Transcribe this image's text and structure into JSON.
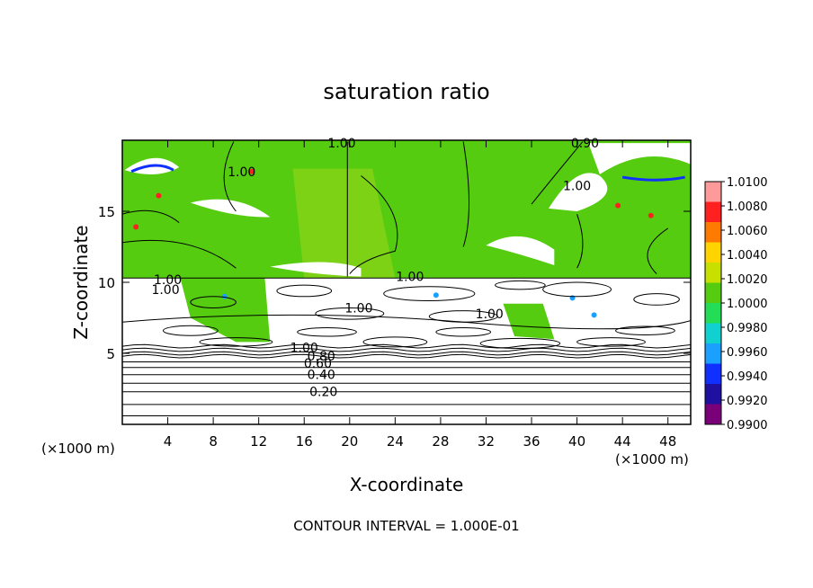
{
  "chart_data": {
    "type": "heatmap",
    "title": "saturation ratio",
    "xlabel": "X-coordinate",
    "ylabel": "Z-coordinate",
    "x_unit_label": "(×1000 m)",
    "z_unit_label": "(×1000 m)",
    "xlim": [
      0,
      50
    ],
    "ylim": [
      0,
      20
    ],
    "x_ticks": [
      4,
      8,
      12,
      16,
      20,
      24,
      28,
      32,
      36,
      40,
      44,
      48
    ],
    "y_ticks": [
      5,
      10,
      15
    ],
    "colorbar": {
      "ticks": [
        "1.0100",
        "1.0080",
        "1.0060",
        "1.0040",
        "1.0020",
        "1.0000",
        "0.9980",
        "0.9960",
        "0.9940",
        "0.9920",
        "0.9900"
      ],
      "colors": [
        "#ff9a9a",
        "#ff2020",
        "#ff7a00",
        "#ffd400",
        "#c8e000",
        "#55cc10",
        "#22dd55",
        "#10d0d0",
        "#1aa0ff",
        "#1030ff",
        "#2010a0",
        "#7a007a"
      ]
    },
    "contour_labels": [
      {
        "text": "1.00",
        "x": 19.3,
        "z": 19.8
      },
      {
        "text": "0.90",
        "x": 40.7,
        "z": 19.8
      },
      {
        "text": "1.00",
        "x": 10.5,
        "z": 17.8
      },
      {
        "text": "1.00",
        "x": 40.0,
        "z": 16.8
      },
      {
        "text": "1.00",
        "x": 4.0,
        "z": 10.2
      },
      {
        "text": "1.00",
        "x": 3.8,
        "z": 9.5
      },
      {
        "text": "1.00",
        "x": 25.3,
        "z": 10.4
      },
      {
        "text": "1.00",
        "x": 20.8,
        "z": 8.2
      },
      {
        "text": "1.00",
        "x": 32.3,
        "z": 7.8
      },
      {
        "text": "1.00",
        "x": 16.0,
        "z": 5.4
      },
      {
        "text": "0.80",
        "x": 17.5,
        "z": 4.8
      },
      {
        "text": "0.60",
        "x": 17.2,
        "z": 4.3
      },
      {
        "text": "0.40",
        "x": 17.5,
        "z": 3.5
      },
      {
        "text": "0.20",
        "x": 17.7,
        "z": 2.3
      }
    ],
    "contour_interval_text": "CONTOUR INTERVAL = 1.000E-01",
    "grid": false
  }
}
